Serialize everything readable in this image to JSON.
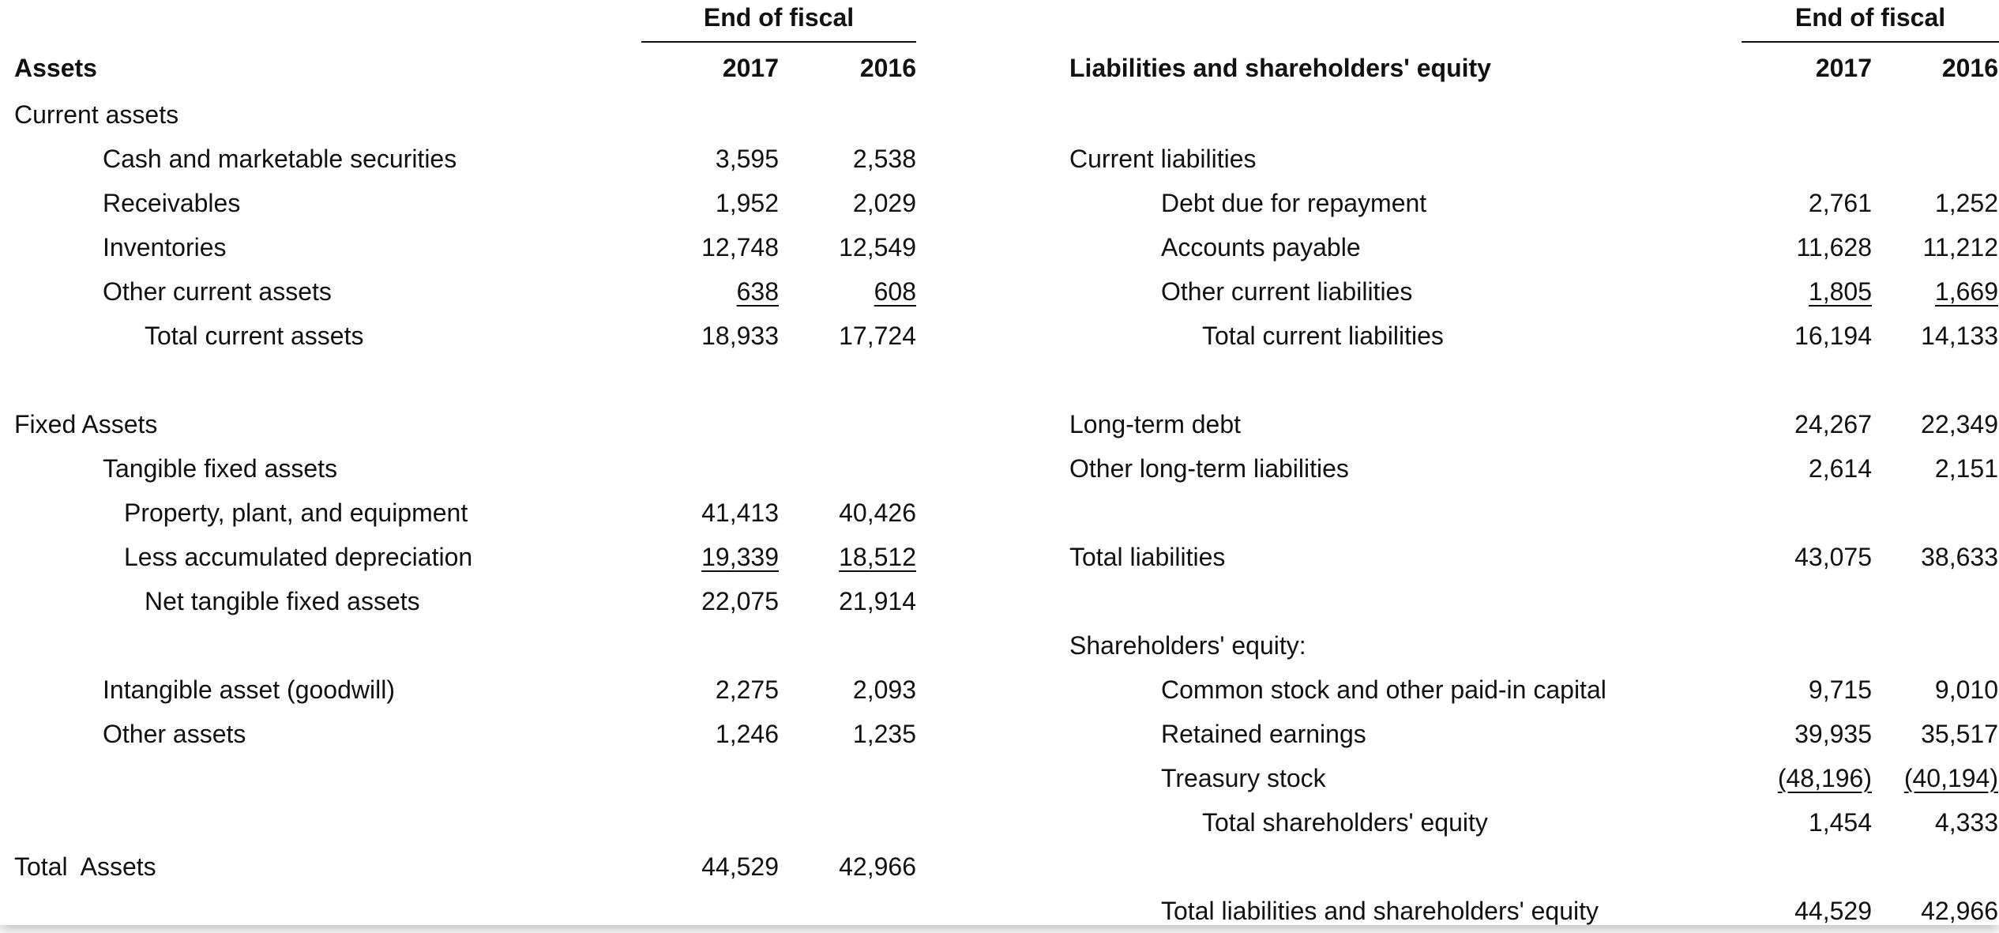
{
  "header": {
    "group_label": "End of fiscal",
    "year_a": "2017",
    "year_b": "2016",
    "assets_heading": "Assets",
    "liabilities_heading": "Liabilities and shareholders' equity"
  },
  "assets": [
    {
      "label": "Current assets",
      "v2017": "",
      "v2016": ""
    },
    {
      "label": "Cash and marketable securities",
      "v2017": "3,595",
      "v2016": "2,538"
    },
    {
      "label": "Receivables",
      "v2017": "1,952",
      "v2016": "2,029"
    },
    {
      "label": "Inventories",
      "v2017": "12,748",
      "v2016": "12,549"
    },
    {
      "label": "Other current assets",
      "v2017": "638",
      "v2016": "608"
    },
    {
      "label": "Total current assets",
      "v2017": "18,933",
      "v2016": "17,724"
    },
    {
      "label": "Fixed Assets",
      "v2017": "",
      "v2016": ""
    },
    {
      "label": "Tangible fixed assets",
      "v2017": "",
      "v2016": ""
    },
    {
      "label": "Property, plant, and equipment",
      "v2017": "41,413",
      "v2016": "40,426"
    },
    {
      "label": "Less accumulated depreciation",
      "v2017": "19,339",
      "v2016": "18,512"
    },
    {
      "label": "Net tangible fixed assets",
      "v2017": "22,075",
      "v2016": "21,914"
    },
    {
      "label": "Intangible asset (goodwill)",
      "v2017": "2,275",
      "v2016": "2,093"
    },
    {
      "label": "Other assets",
      "v2017": "1,246",
      "v2016": "1,235"
    },
    {
      "label": "Total  Assets",
      "v2017": "44,529",
      "v2016": "42,966"
    }
  ],
  "liabilities": [
    {
      "label": "Current liabilities",
      "v2017": "",
      "v2016": ""
    },
    {
      "label": "Debt due for repayment",
      "v2017": "2,761",
      "v2016": "1,252"
    },
    {
      "label": "Accounts payable",
      "v2017": "11,628",
      "v2016": "11,212"
    },
    {
      "label": "Other current liabilities",
      "v2017": "1,805",
      "v2016": "1,669"
    },
    {
      "label": "Total current liabilities",
      "v2017": "16,194",
      "v2016": "14,133"
    },
    {
      "label": "Long-term debt",
      "v2017": "24,267",
      "v2016": "22,349"
    },
    {
      "label": "Other long-term liabilities",
      "v2017": "2,614",
      "v2016": "2,151"
    },
    {
      "label": "Total liabilities",
      "v2017": "43,075",
      "v2016": "38,633"
    },
    {
      "label": "Shareholders' equity:",
      "v2017": "",
      "v2016": ""
    },
    {
      "label": "Common stock and other paid-in capital",
      "v2017": "9,715",
      "v2016": "9,010"
    },
    {
      "label": "Retained earnings",
      "v2017": "39,935",
      "v2016": "35,517"
    },
    {
      "label": "Treasury stock",
      "v2017": "(48,196)",
      "v2016": "(40,194)"
    },
    {
      "label": "Total shareholders' equity",
      "v2017": "1,454",
      "v2016": "4,333"
    },
    {
      "label": "Total liabilities and shareholders' equity",
      "v2017": "44,529",
      "v2016": "42,966"
    }
  ]
}
